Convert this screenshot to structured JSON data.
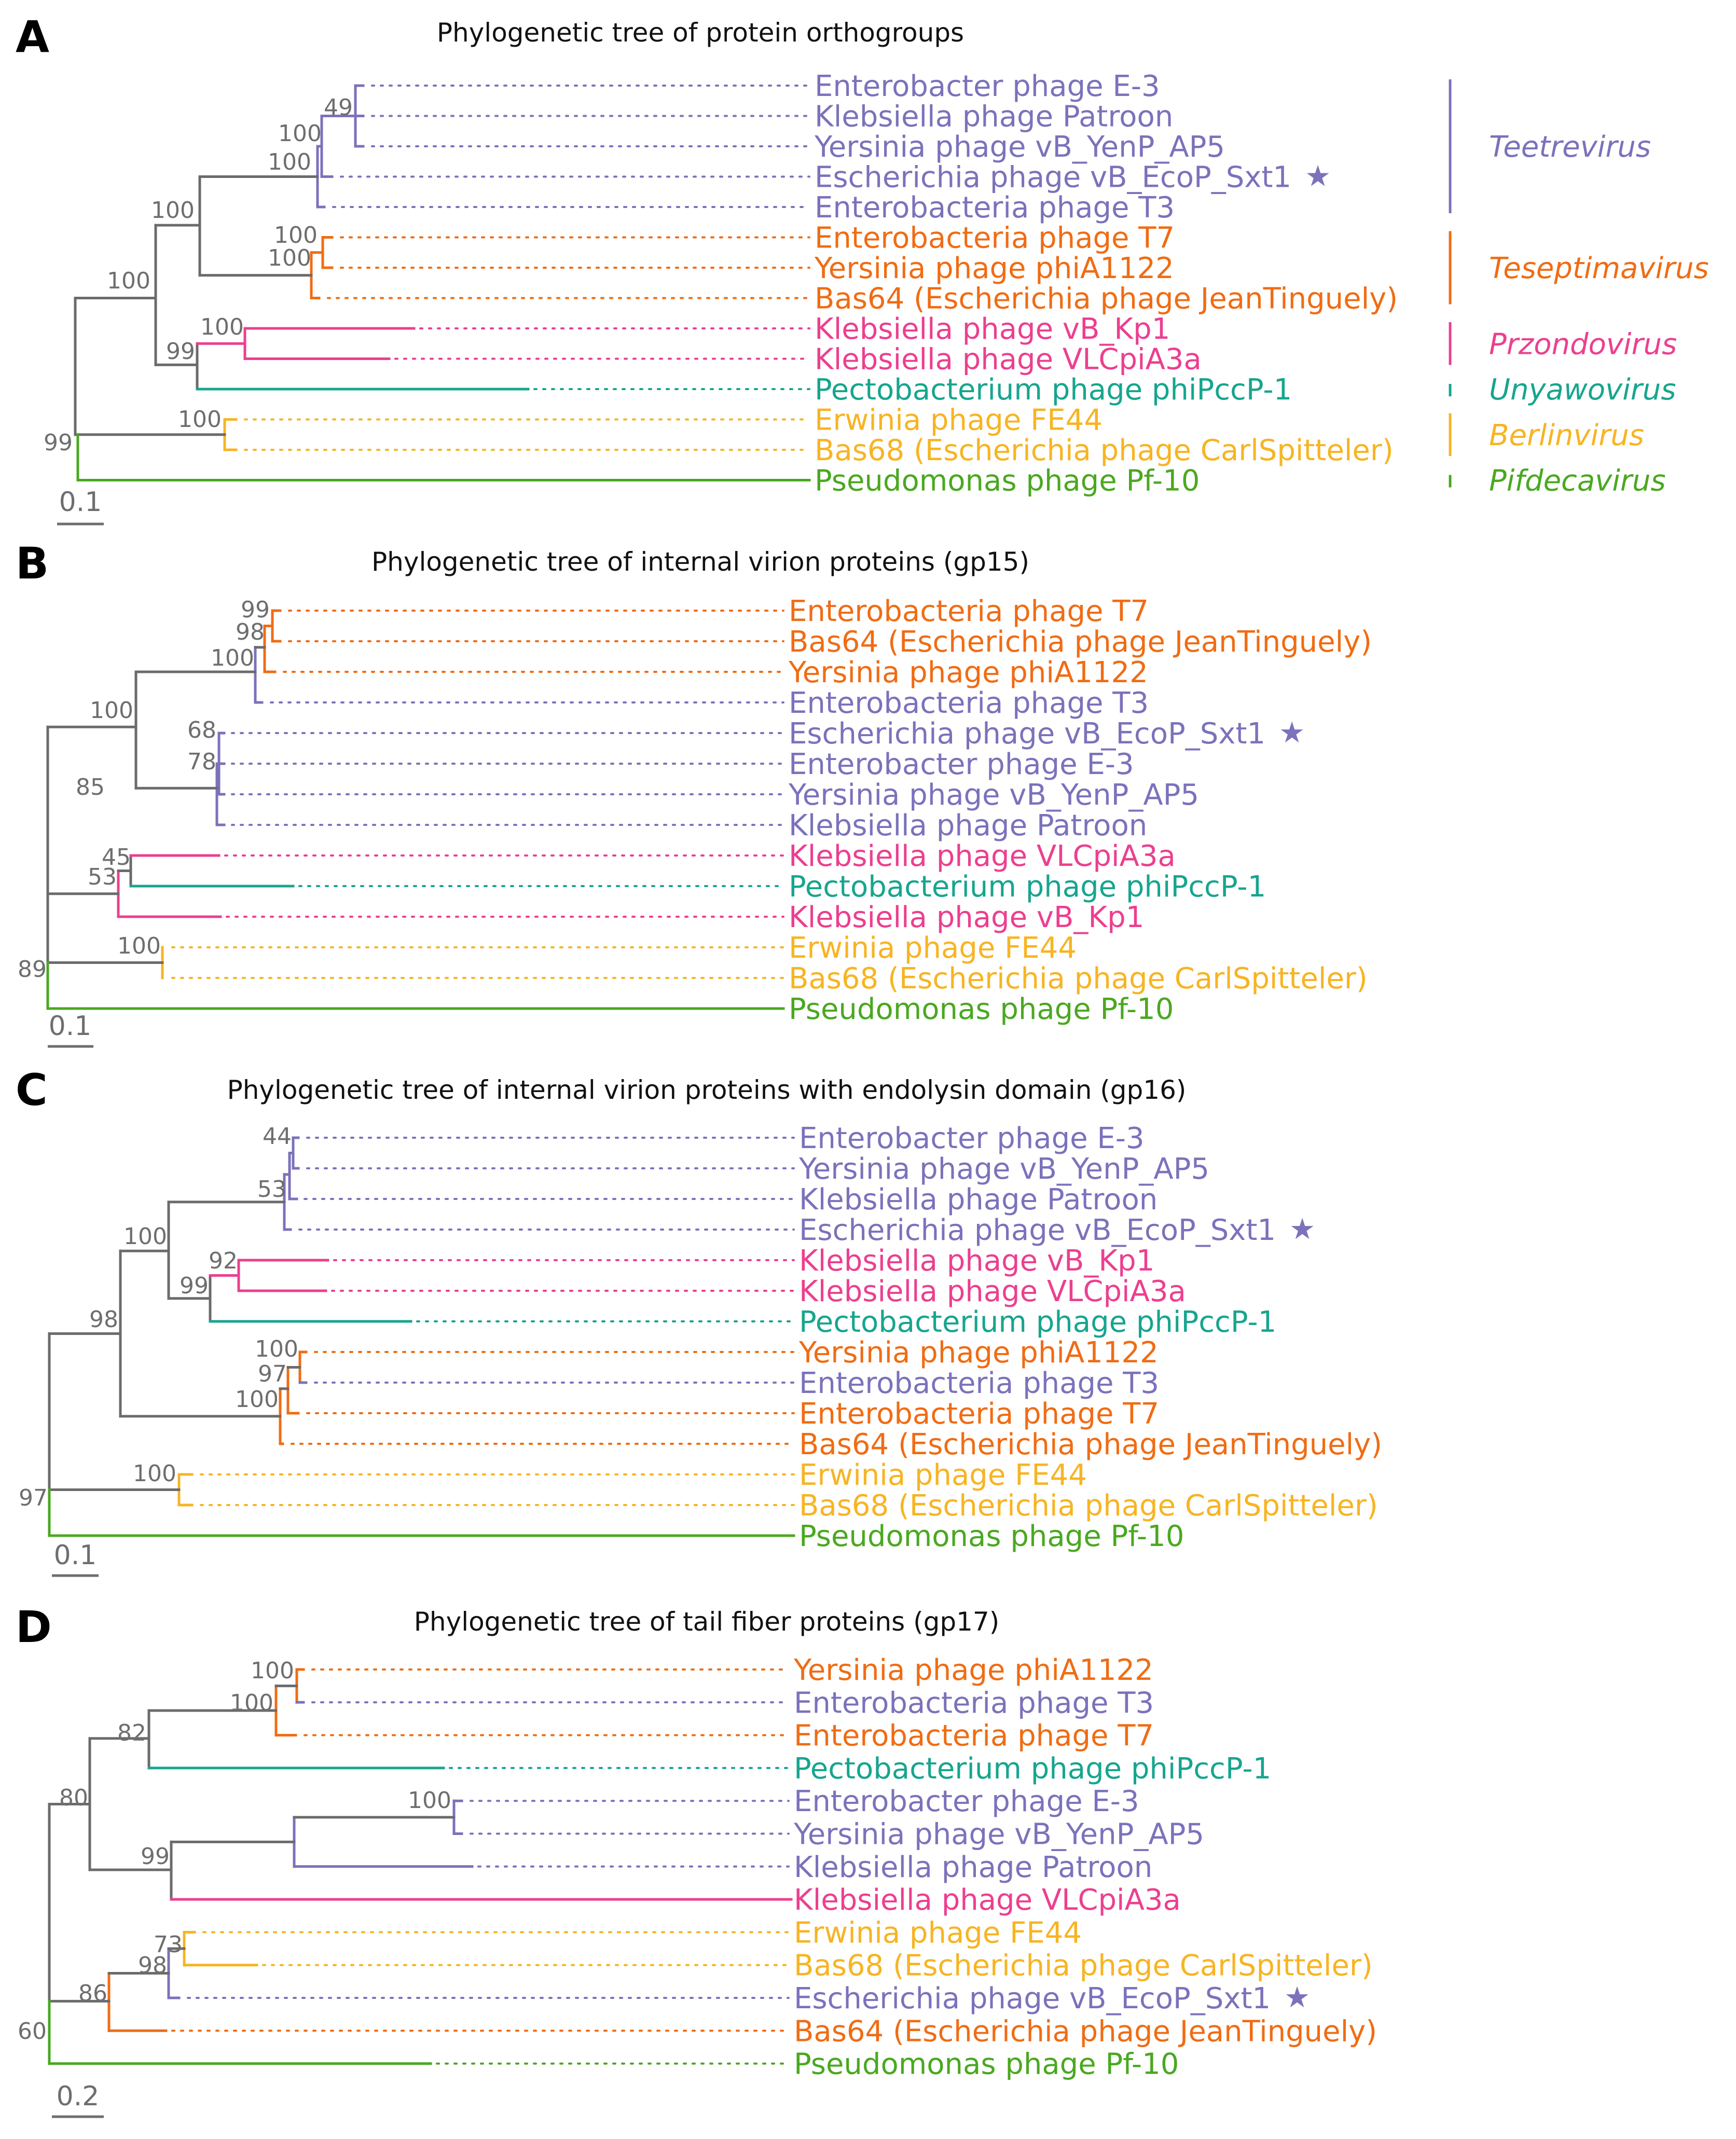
{
  "colors": {
    "Teetrevirus": "#7b72bb",
    "Teseptimavirus": "#f06c14",
    "Przondovirus": "#ec3f8f",
    "Unyawovirus": "#17a58e",
    "Berlinvirus": "#f7b422",
    "Pifdecavirus": "#4aa820",
    "Internal": "#6b6b6b"
  },
  "panels": [
    {
      "letter": "A",
      "title": "Phylogenetic tree of protein orthogroups",
      "scale_label": "0.1",
      "leaves": [
        {
          "name": "Enterobacter phage E-3",
          "genus": "Teetrevirus"
        },
        {
          "name": "Klebsiella phage Patroon",
          "genus": "Teetrevirus"
        },
        {
          "name": "Yersinia phage vB_YenP_AP5",
          "genus": "Teetrevirus"
        },
        {
          "name": "Escherichia phage vB_EcoP_Sxt1",
          "genus": "Teetrevirus",
          "star": "★"
        },
        {
          "name": "Enterobacteria phage T3",
          "genus": "Teetrevirus"
        },
        {
          "name": "Enterobacteria phage T7",
          "genus": "Teseptimavirus"
        },
        {
          "name": "Yersinia phage phiA1122",
          "genus": "Teseptimavirus"
        },
        {
          "name": "Bas64 (Escherichia phage JeanTinguely)",
          "genus": "Teseptimavirus"
        },
        {
          "name": "Klebsiella phage vB_Kp1",
          "genus": "Przondovirus"
        },
        {
          "name": "Klebsiella phage VLCpiA3a",
          "genus": "Przondovirus"
        },
        {
          "name": "Pectobacterium phage phiPccP-1",
          "genus": "Unyawovirus"
        },
        {
          "name": "Erwinia phage FE44",
          "genus": "Berlinvirus"
        },
        {
          "name": "Bas68 (Escherichia phage CarlSpitteler)",
          "genus": "Berlinvirus"
        },
        {
          "name": "Pseudomonas phage Pf-10",
          "genus": "Pifdecavirus"
        }
      ],
      "bootstrap": [
        "49",
        "100",
        "100",
        "100",
        "100",
        "100",
        "100",
        "100",
        "99",
        "100",
        "99"
      ],
      "genera": [
        {
          "name": "Teetrevirus"
        },
        {
          "name": "Teseptimavirus"
        },
        {
          "name": "Przondovirus"
        },
        {
          "name": "Unyawovirus"
        },
        {
          "name": "Berlinvirus"
        },
        {
          "name": "Pifdecavirus"
        }
      ]
    },
    {
      "letter": "B",
      "title": "Phylogenetic tree of internal virion proteins (gp15)",
      "scale_label": "0.1",
      "leaves": [
        {
          "name": "Enterobacteria phage T7",
          "genus": "Teseptimavirus"
        },
        {
          "name": "Bas64 (Escherichia phage JeanTinguely)",
          "genus": "Teseptimavirus"
        },
        {
          "name": "Yersinia phage phiA1122",
          "genus": "Teseptimavirus"
        },
        {
          "name": "Enterobacteria phage T3",
          "genus": "Teetrevirus"
        },
        {
          "name": "Escherichia phage vB_EcoP_Sxt1",
          "genus": "Teetrevirus",
          "star": "★"
        },
        {
          "name": "Enterobacter phage E-3",
          "genus": "Teetrevirus"
        },
        {
          "name": "Yersinia phage vB_YenP_AP5",
          "genus": "Teetrevirus"
        },
        {
          "name": "Klebsiella phage Patroon",
          "genus": "Teetrevirus"
        },
        {
          "name": "Klebsiella phage VLCpiA3a",
          "genus": "Przondovirus"
        },
        {
          "name": "Pectobacterium phage phiPccP-1",
          "genus": "Unyawovirus"
        },
        {
          "name": "Klebsiella phage vB_Kp1",
          "genus": "Przondovirus"
        },
        {
          "name": "Erwinia phage FE44",
          "genus": "Berlinvirus"
        },
        {
          "name": "Bas68 (Escherichia phage CarlSpitteler)",
          "genus": "Berlinvirus"
        },
        {
          "name": "Pseudomonas phage Pf-10",
          "genus": "Pifdecavirus"
        }
      ],
      "bootstrap": [
        "99",
        "98",
        "100",
        "68",
        "78",
        "100",
        "85",
        "45",
        "53",
        "100",
        "89"
      ]
    },
    {
      "letter": "C",
      "title": "Phylogenetic tree of internal virion proteins with endolysin domain (gp16)",
      "scale_label": "0.1",
      "leaves": [
        {
          "name": "Enterobacter phage E-3",
          "genus": "Teetrevirus"
        },
        {
          "name": "Yersinia phage vB_YenP_AP5",
          "genus": "Teetrevirus"
        },
        {
          "name": "Klebsiella phage Patroon",
          "genus": "Teetrevirus"
        },
        {
          "name": "Escherichia phage vB_EcoP_Sxt1",
          "genus": "Teetrevirus",
          "star": "★"
        },
        {
          "name": "Klebsiella phage vB_Kp1",
          "genus": "Przondovirus"
        },
        {
          "name": "Klebsiella phage VLCpiA3a",
          "genus": "Przondovirus"
        },
        {
          "name": "Pectobacterium phage phiPccP-1",
          "genus": "Unyawovirus"
        },
        {
          "name": "Yersinia phage phiA1122",
          "genus": "Teseptimavirus"
        },
        {
          "name": "Enterobacteria phage T3",
          "genus": "Teetrevirus"
        },
        {
          "name": "Enterobacteria phage T7",
          "genus": "Teseptimavirus"
        },
        {
          "name": "Bas64 (Escherichia phage JeanTinguely)",
          "genus": "Teseptimavirus"
        },
        {
          "name": "Erwinia phage FE44",
          "genus": "Berlinvirus"
        },
        {
          "name": "Bas68 (Escherichia phage CarlSpitteler)",
          "genus": "Berlinvirus"
        },
        {
          "name": "Pseudomonas phage Pf-10",
          "genus": "Pifdecavirus"
        }
      ],
      "bootstrap": [
        "44",
        "53",
        "100",
        "92",
        "99",
        "98",
        "100",
        "97",
        "100",
        "100",
        "97"
      ]
    },
    {
      "letter": "D",
      "title": "Phylogenetic tree of tail fiber proteins (gp17)",
      "scale_label": "0.2",
      "leaves": [
        {
          "name": "Yersinia phage phiA1122",
          "genus": "Teseptimavirus"
        },
        {
          "name": "Enterobacteria phage T3",
          "genus": "Teetrevirus"
        },
        {
          "name": "Enterobacteria phage T7",
          "genus": "Teseptimavirus"
        },
        {
          "name": "Pectobacterium phage phiPccP-1",
          "genus": "Unyawovirus"
        },
        {
          "name": "Enterobacter phage E-3",
          "genus": "Teetrevirus"
        },
        {
          "name": "Yersinia phage vB_YenP_AP5",
          "genus": "Teetrevirus"
        },
        {
          "name": "Klebsiella phage Patroon",
          "genus": "Teetrevirus"
        },
        {
          "name": "Klebsiella phage VLCpiA3a",
          "genus": "Przondovirus"
        },
        {
          "name": "Erwinia phage FE44",
          "genus": "Berlinvirus"
        },
        {
          "name": "Bas68 (Escherichia phage CarlSpitteler)",
          "genus": "Berlinvirus"
        },
        {
          "name": "Escherichia phage vB_EcoP_Sxt1",
          "genus": "Teetrevirus",
          "star": "★"
        },
        {
          "name": "Bas64 (Escherichia phage JeanTinguely)",
          "genus": "Teseptimavirus"
        },
        {
          "name": "Pseudomonas phage Pf-10",
          "genus": "Pifdecavirus"
        }
      ],
      "bootstrap": [
        "100",
        "100",
        "82",
        "100",
        "99",
        "80",
        "73",
        "98",
        "86",
        "60"
      ]
    }
  ]
}
